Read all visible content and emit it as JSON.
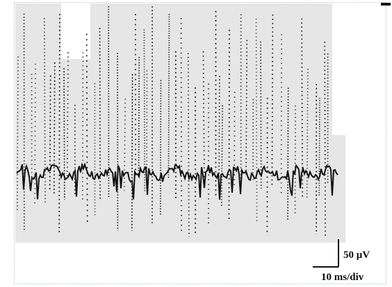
{
  "scale_bar": {
    "voltage": "50 μV",
    "time": "10 ms/div"
  }
}
